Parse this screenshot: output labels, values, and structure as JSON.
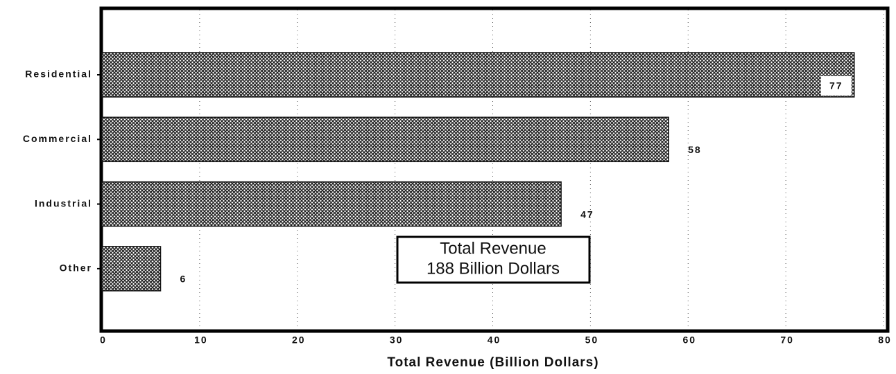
{
  "chart_data": {
    "type": "barh",
    "categories": [
      "Residential",
      "Commercial",
      "Industrial",
      "Other"
    ],
    "values": [
      77,
      58,
      47,
      6
    ],
    "color": "#333333",
    "xlabel": "Total Revenue (Billion Dollars)",
    "xlim": [
      0,
      80
    ],
    "xticks": [
      0,
      10,
      20,
      30,
      40,
      50,
      60,
      70,
      80
    ],
    "grid": true,
    "annotation": [
      "Total Revenue",
      "188 Billion Dollars"
    ]
  }
}
